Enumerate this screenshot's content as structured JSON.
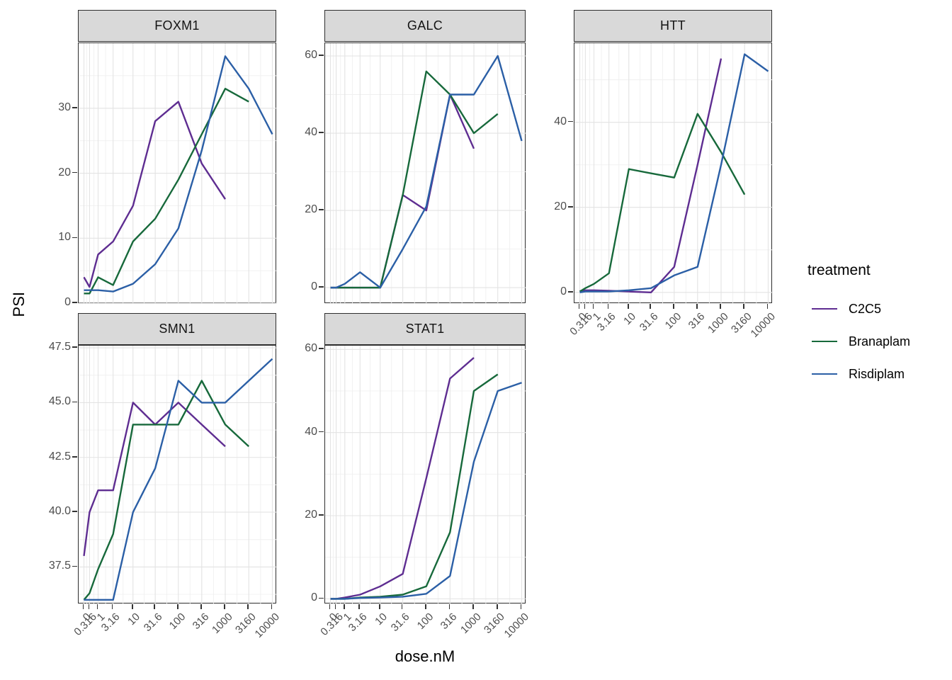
{
  "figure": {
    "y_axis_title": "PSI",
    "x_axis_title": "dose.nM",
    "legend": {
      "title": "treatment",
      "entries": [
        {
          "label": "C2C5",
          "color": "#5E2D91"
        },
        {
          "label": "Branaplam",
          "color": "#17693B"
        },
        {
          "label": "Risdiplam",
          "color": "#2B5FA6"
        }
      ]
    },
    "colors": {
      "strip_fill": "#d9d9d9",
      "panel_border": "#2e2e2e",
      "grid_major": "#e3e3e3",
      "grid_minor": "#f0f0f0",
      "tick_text": "#4d4d4d"
    }
  },
  "chart_data": {
    "type": "line",
    "title": "",
    "xlabel": "dose.nM",
    "ylabel": "PSI",
    "x_transform": "pseudo-log (log1p)",
    "grid": true,
    "legend_position": "right",
    "doses": [
      0,
      0.316,
      1,
      3.16,
      10,
      31.6,
      100,
      316,
      1000,
      3160,
      10000
    ],
    "x_tick_labels": [
      "0",
      "0.316",
      "1",
      "3.16",
      "10",
      "31.6",
      "100",
      "316",
      "1000",
      "3160",
      "10000"
    ],
    "facets": [
      {
        "name": "FOXM1",
        "row": 0,
        "col": 0,
        "ylim": [
          -0.1,
          40
        ],
        "yticks": [
          {
            "v": 0,
            "label": "0"
          },
          {
            "v": 10,
            "label": "10"
          },
          {
            "v": 20,
            "label": "20"
          },
          {
            "v": 30,
            "label": "30"
          }
        ],
        "series": [
          {
            "name": "C2C5",
            "values": [
              4,
              2.5,
              7.5,
              9.5,
              15,
              28,
              31,
              21.5,
              16,
              null,
              null
            ]
          },
          {
            "name": "Branaplam",
            "values": [
              1.5,
              1.5,
              4,
              2.8,
              9.5,
              13,
              19,
              26,
              33,
              31,
              null
            ]
          },
          {
            "name": "Risdiplam",
            "values": [
              2,
              2,
              2,
              1.8,
              3,
              6,
              11.5,
              23.5,
              38,
              33,
              26
            ]
          }
        ]
      },
      {
        "name": "GALC",
        "row": 0,
        "col": 1,
        "ylim": [
          -4.2,
          63.3
        ],
        "yticks": [
          {
            "v": 0,
            "label": "0"
          },
          {
            "v": 20,
            "label": "20"
          },
          {
            "v": 40,
            "label": "40"
          },
          {
            "v": 60,
            "label": "60"
          }
        ],
        "series": [
          {
            "name": "C2C5",
            "values": [
              0,
              0,
              0,
              0,
              0,
              24,
              20,
              50,
              36,
              null,
              null
            ]
          },
          {
            "name": "Branaplam",
            "values": [
              0,
              0,
              0,
              0,
              0,
              24,
              56,
              50,
              40,
              45,
              null
            ]
          },
          {
            "name": "Risdiplam",
            "values": [
              0,
              0,
              1,
              4,
              0,
              10,
              21,
              50,
              50,
              60,
              38
            ]
          }
        ]
      },
      {
        "name": "HTT",
        "row": 0,
        "col": 2,
        "ylim": [
          -2.7,
          58.6
        ],
        "yticks": [
          {
            "v": 0,
            "label": "0"
          },
          {
            "v": 20,
            "label": "20"
          },
          {
            "v": 40,
            "label": "40"
          }
        ],
        "series": [
          {
            "name": "C2C5",
            "values": [
              0.3,
              0.5,
              0.5,
              0.4,
              0.2,
              0,
              6,
              30,
              55,
              null,
              null
            ]
          },
          {
            "name": "Branaplam",
            "values": [
              0.2,
              1,
              2,
              4.5,
              29,
              28,
              27,
              42,
              33,
              23,
              null
            ]
          },
          {
            "name": "Risdiplam",
            "values": [
              0,
              0.2,
              0.2,
              0.2,
              0.5,
              1,
              4,
              6,
              30,
              56,
              52
            ]
          }
        ]
      },
      {
        "name": "SMN1",
        "row": 1,
        "col": 0,
        "ylim": [
          35.8,
          47.6
        ],
        "yticks": [
          {
            "v": 37.5,
            "label": "37.5"
          },
          {
            "v": 40,
            "label": "40.0"
          },
          {
            "v": 42.5,
            "label": "42.5"
          },
          {
            "v": 45,
            "label": "45.0"
          },
          {
            "v": 47.5,
            "label": "47.5"
          }
        ],
        "series": [
          {
            "name": "C2C5",
            "values": [
              38,
              40,
              41,
              41,
              45,
              44,
              45,
              44,
              43,
              null,
              null
            ]
          },
          {
            "name": "Branaplam",
            "values": [
              36,
              36.3,
              37.4,
              39,
              44,
              44,
              44,
              46,
              44,
              43,
              null
            ]
          },
          {
            "name": "Risdiplam",
            "values": [
              36,
              36,
              36,
              36,
              40,
              42,
              46,
              45,
              45,
              46,
              47
            ]
          }
        ]
      },
      {
        "name": "STAT1",
        "row": 1,
        "col": 1,
        "ylim": [
          -1.3,
          60.9
        ],
        "yticks": [
          {
            "v": 0,
            "label": "0"
          },
          {
            "v": 20,
            "label": "20"
          },
          {
            "v": 40,
            "label": "40"
          },
          {
            "v": 60,
            "label": "60"
          }
        ],
        "series": [
          {
            "name": "C2C5",
            "values": [
              0,
              0,
              0.3,
              1,
              3,
              6,
              29,
              53,
              58,
              null,
              null
            ]
          },
          {
            "name": "Branaplam",
            "values": [
              0,
              0,
              0,
              0.3,
              0.5,
              1,
              3,
              16,
              50,
              54,
              null
            ]
          },
          {
            "name": "Risdiplam",
            "values": [
              0,
              0,
              0,
              0.2,
              0.3,
              0.5,
              1.2,
              5.5,
              33,
              50,
              52
            ]
          }
        ]
      }
    ]
  }
}
